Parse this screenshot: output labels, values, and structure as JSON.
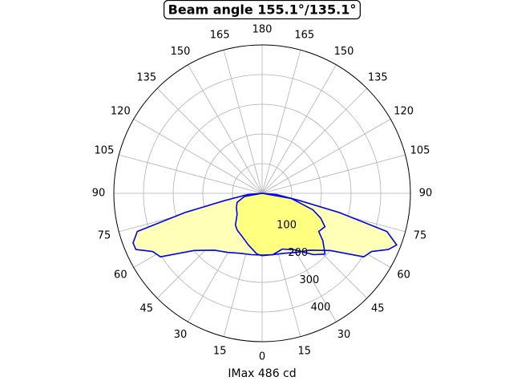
{
  "chart_data": {
    "type": "polar",
    "title": "Beam angle 155.1°/135.1°",
    "xlabel": "IMax 486 cd",
    "rlim": [
      0,
      500
    ],
    "rticks": [
      100,
      200,
      300,
      400
    ],
    "angle_ticks": [
      0,
      15,
      30,
      45,
      60,
      75,
      90,
      105,
      120,
      135,
      150,
      165,
      180
    ],
    "grid": true,
    "series": [
      {
        "color": "#0000ee",
        "fill": "#ffffb8",
        "theta": [
          -90,
          -85,
          -79,
          -76,
          -73,
          -69,
          -66,
          -62,
          -58,
          -50,
          -40,
          -30,
          -20,
          -10,
          0,
          10,
          20,
          30,
          40,
          50,
          58,
          62,
          66,
          69,
          73,
          76,
          79,
          85,
          90
        ],
        "values": [
          0,
          50,
          130,
          270,
          440,
          466,
          466,
          418,
          404,
          300,
          250,
          230,
          215,
          210,
          208,
          210,
          215,
          230,
          250,
          300,
          404,
          418,
          466,
          486,
          440,
          270,
          130,
          50,
          0
        ]
      },
      {
        "color": "#0000ee",
        "fill": "#ffff80",
        "theta": [
          -90,
          -80,
          -70,
          -60,
          -50,
          -40,
          -34,
          -25,
          -15,
          -5,
          0,
          10,
          20,
          30,
          40,
          46,
          52,
          56,
          62,
          67,
          72,
          80,
          90
        ],
        "values": [
          0,
          60,
          90,
          100,
          110,
          140,
          150,
          160,
          180,
          205,
          210,
          210,
          200,
          220,
          270,
          295,
          260,
          230,
          240,
          215,
          180,
          100,
          0
        ]
      }
    ]
  }
}
